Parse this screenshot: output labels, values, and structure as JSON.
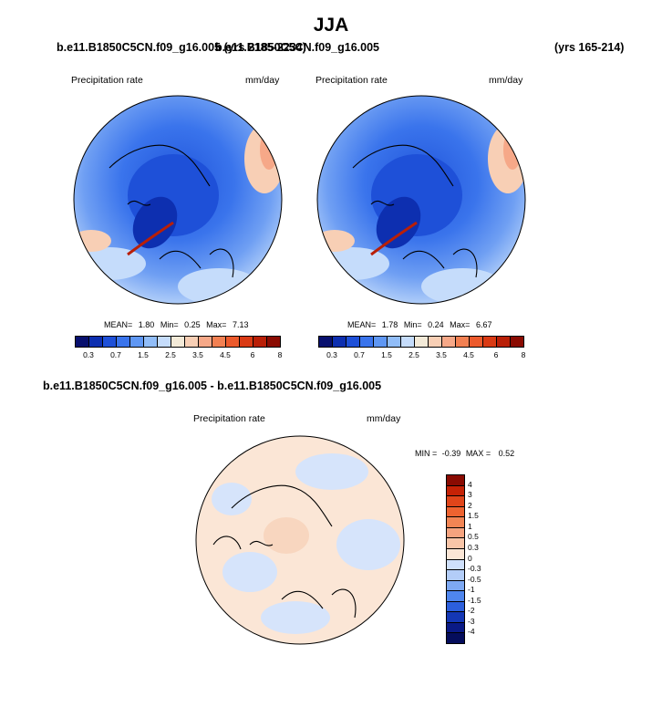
{
  "title": "JJA",
  "panels": [
    {
      "case": "b.e11.B1850C5CN.f09_g16.005 (yrs 2185-2234)",
      "variable": "Precipitation rate",
      "units": "mm/day",
      "stats": {
        "mean_label": "MEAN=",
        "mean": "1.80",
        "min_label": "Min=",
        "min": "0.25",
        "max_label": "Max=",
        "max": "7.13"
      }
    },
    {
      "case": "b.e11.B1850C5CN.f09_g16.005",
      "years": "(yrs 165-214)",
      "variable": "Precipitation rate",
      "units": "mm/day",
      "stats": {
        "mean_label": "MEAN=",
        "mean": "1.78",
        "min_label": "Min=",
        "min": "0.24",
        "max_label": "Max=",
        "max": "6.67"
      }
    },
    {
      "case": "b.e11.B1850C5CN.f09_g16.005 - b.e11.B1850C5CN.f09_g16.005",
      "variable": "Precipitation rate",
      "units": "mm/day",
      "stats": {
        "min_label": "MIN =",
        "min": "-0.39",
        "max_label": "MAX =",
        "max": "0.52"
      }
    }
  ],
  "colorbar_h": {
    "labels": [
      "0.3",
      "0.7",
      "1.5",
      "2.5",
      "3.5",
      "4.5",
      "6",
      "8"
    ],
    "colors": [
      "#08106e",
      "#0d2fb0",
      "#1e50d8",
      "#3a74ec",
      "#5f97f3",
      "#91bdf8",
      "#c5dcfb",
      "#f3ead8",
      "#f8cfb5",
      "#f6a888",
      "#f28052",
      "#ec5a2c",
      "#d93a14",
      "#b91f07",
      "#8a0b02"
    ]
  },
  "colorbar_v": {
    "labels": [
      "4",
      "3",
      "2",
      "1.5",
      "1",
      "0.5",
      "0.3",
      "0",
      "-0.3",
      "-0.5",
      "-1",
      "-1.5",
      "-2",
      "-3",
      "-4"
    ],
    "colors": [
      "#8a0b02",
      "#c52206",
      "#e0451a",
      "#ee6330",
      "#f28554",
      "#f5a37f",
      "#f8c5a8",
      "#fbe6d6",
      "#cfe0fb",
      "#b3cdf8",
      "#7ea9f3",
      "#4f86ee",
      "#2c5fdc",
      "#1437b5",
      "#0a1a86",
      "#050d5c"
    ]
  },
  "chart_data": [
    {
      "type": "heatmap",
      "projection": "polar-stereographic (north)",
      "title": "b.e11.B1850C5CN.f09_g16.005 (yrs 2185-2234)",
      "left_label": "Precipitation rate",
      "right_label": "mm/day",
      "mean": 1.8,
      "min": 0.25,
      "max": 7.13,
      "contour_levels": [
        0.3,
        0.5,
        0.7,
        1,
        1.5,
        2,
        2.5,
        3,
        3.5,
        4,
        4.5,
        5,
        6,
        7,
        8
      ]
    },
    {
      "type": "heatmap",
      "projection": "polar-stereographic (north)",
      "title": "b.e11.B1850C5CN.f09_g16.005 (yrs 165-214)",
      "left_label": "Precipitation rate",
      "right_label": "mm/day",
      "mean": 1.78,
      "min": 0.24,
      "max": 6.67,
      "contour_levels": [
        0.3,
        0.5,
        0.7,
        1,
        1.5,
        2,
        2.5,
        3,
        3.5,
        4,
        4.5,
        5,
        6,
        7,
        8
      ]
    },
    {
      "type": "heatmap",
      "projection": "polar-stereographic (north)",
      "title": "b.e11.B1850C5CN.f09_g16.005 - b.e11.B1850C5CN.f09_g16.005",
      "left_label": "Precipitation rate",
      "right_label": "mm/day",
      "min": -0.39,
      "max": 0.52,
      "contour_levels": [
        -4,
        -3,
        -2,
        -1.5,
        -1,
        -0.5,
        -0.3,
        0,
        0.3,
        0.5,
        1,
        1.5,
        2,
        3,
        4
      ]
    }
  ]
}
